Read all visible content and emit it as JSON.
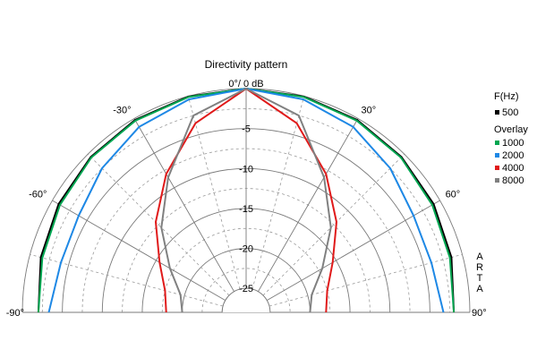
{
  "chart_data": {
    "type": "polar",
    "title": "Directivity pattern",
    "top_label": "0°/ 0 dB",
    "radial_axis": {
      "unit": "dB",
      "min": -28,
      "max": 0,
      "ticks": [
        "-5",
        "-10",
        "-15",
        "-20",
        "-25"
      ],
      "tick_values": [
        -5,
        -10,
        -15,
        -20,
        -25
      ]
    },
    "angle_axis": {
      "unit": "deg",
      "range": [
        -90,
        90
      ],
      "labels": [
        "-90°",
        "-60°",
        "-30°",
        "30°",
        "60°",
        "90°"
      ],
      "label_values": [
        -90,
        -60,
        -30,
        30,
        60,
        90
      ]
    },
    "grid": true,
    "legend": {
      "position": "right",
      "heading": "F(Hz)",
      "overlay_heading": "Overlay",
      "entries": [
        "500",
        "1000",
        "2000",
        "4000",
        "8000"
      ]
    },
    "watermark": [
      "A",
      "R",
      "T",
      "A"
    ],
    "angles": [
      -90,
      -75,
      -60,
      -45,
      -30,
      -15,
      0,
      15,
      30,
      45,
      60,
      75,
      90
    ],
    "series": [
      {
        "name": "500",
        "color": "#000000",
        "values": [
          -2.0,
          -1.4,
          -0.9,
          -0.5,
          -0.2,
          -0.05,
          0,
          -0.05,
          -0.2,
          -0.5,
          -0.9,
          -1.4,
          -2.0
        ]
      },
      {
        "name": "1000",
        "color": "#00a651",
        "values": [
          -2.0,
          -1.6,
          -1.1,
          -0.6,
          -0.3,
          -0.1,
          0,
          -0.1,
          -0.3,
          -0.6,
          -1.1,
          -1.6,
          -2.0
        ]
      },
      {
        "name": "2000",
        "color": "#1e88e5",
        "values": [
          -3.3,
          -4.0,
          -3.8,
          -2.5,
          -1.2,
          -0.4,
          0,
          -0.4,
          -1.2,
          -2.5,
          -3.8,
          -4.0,
          -3.3
        ]
      },
      {
        "name": "4000",
        "color": "#e01a1a",
        "values": [
          -18.0,
          -17.5,
          -15.5,
          -12.0,
          -8.0,
          -3.5,
          0,
          -3.5,
          -8.0,
          -12.0,
          -15.5,
          -17.5,
          -18.0
        ]
      },
      {
        "name": "8000",
        "color": "#808080",
        "values": [
          -20.0,
          -19.5,
          -17.0,
          -13.0,
          -8.5,
          -2.5,
          0,
          -2.5,
          -8.5,
          -13.0,
          -17.0,
          -19.5,
          -20.0
        ]
      }
    ]
  }
}
